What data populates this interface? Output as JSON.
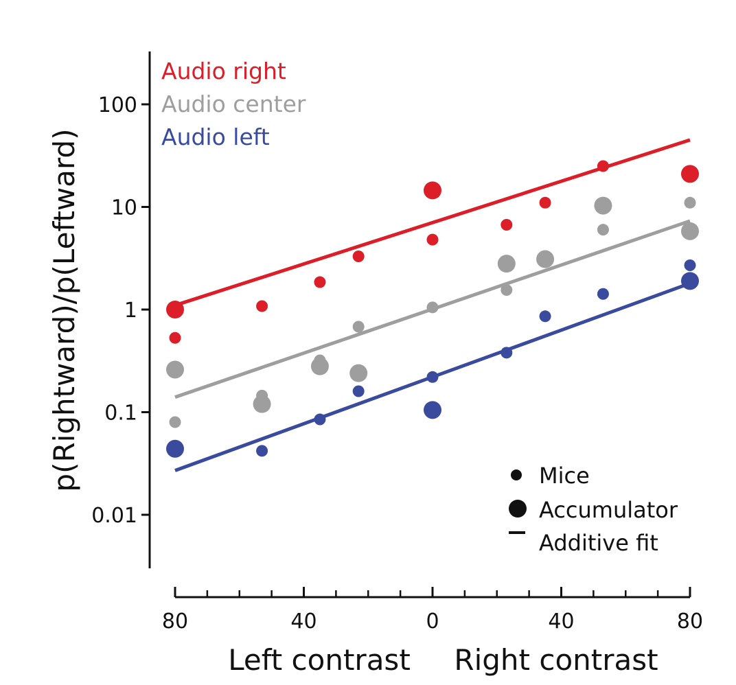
{
  "chart_data": {
    "type": "scatter",
    "ylabel": "p(Rightward)/p(Leftward)",
    "xlabel_left": "Left contrast",
    "xlabel_right": "Right contrast",
    "yscale": "log",
    "ylim": [
      0.002,
      250
    ],
    "xlim": [
      -80,
      80
    ],
    "y_ticks": [
      {
        "value": 0.01,
        "label": "0.01"
      },
      {
        "value": 0.1,
        "label": "0.1"
      },
      {
        "value": 1,
        "label": "1"
      },
      {
        "value": 10,
        "label": "10"
      },
      {
        "value": 100,
        "label": "100"
      }
    ],
    "x_ticks_major": [
      {
        "value": -80,
        "label": "80"
      },
      {
        "value": -40,
        "label": "40"
      },
      {
        "value": 0,
        "label": "0"
      },
      {
        "value": 40,
        "label": "40"
      },
      {
        "value": 80,
        "label": "80"
      }
    ],
    "x_ticks_minor": [
      -70,
      -60,
      -50,
      -30,
      -20,
      -10,
      10,
      20,
      30,
      50,
      60,
      70
    ],
    "legend_series": [
      {
        "name": "Audio right",
        "color": "#dc1e28"
      },
      {
        "name": "Audio center",
        "color": "#9e9e9e"
      },
      {
        "name": "Audio left",
        "color": "#3a4b9e"
      }
    ],
    "marker_legend": {
      "mice": "Mice",
      "accumulator": "Accumulator",
      "fit": "Additive fit"
    },
    "series": [
      {
        "name": "Audio right",
        "color": "#dc1e28",
        "fit": [
          [
            -80,
            1.1
          ],
          [
            80,
            45
          ]
        ],
        "mice": [
          [
            -80,
            0.53
          ],
          [
            -53,
            1.08
          ],
          [
            -35,
            1.85
          ],
          [
            -23,
            3.3
          ],
          [
            0,
            4.8
          ],
          [
            23,
            6.7
          ],
          [
            35,
            11
          ],
          [
            53,
            25
          ],
          [
            80,
            21
          ]
        ],
        "accumulator": [
          [
            -80,
            1.0
          ],
          [
            0,
            14.5
          ],
          [
            80,
            21
          ]
        ]
      },
      {
        "name": "Audio center",
        "color": "#9e9e9e",
        "fit": [
          [
            -80,
            0.14
          ],
          [
            80,
            7.3
          ]
        ],
        "mice": [
          [
            -80,
            0.08
          ],
          [
            -53,
            0.145
          ],
          [
            -35,
            0.32
          ],
          [
            -23,
            0.68
          ],
          [
            0,
            1.05
          ],
          [
            23,
            1.55
          ],
          [
            53,
            6.0
          ],
          [
            80,
            11
          ]
        ],
        "accumulator": [
          [
            -80,
            0.26
          ],
          [
            -53,
            0.12
          ],
          [
            -35,
            0.28
          ],
          [
            -23,
            0.24
          ],
          [
            23,
            2.8
          ],
          [
            35,
            3.1
          ],
          [
            53,
            10.3
          ],
          [
            80,
            5.8
          ]
        ]
      },
      {
        "name": "Audio left",
        "color": "#3a4b9e",
        "fit": [
          [
            -80,
            0.027
          ],
          [
            80,
            1.8
          ]
        ],
        "mice": [
          [
            -53,
            0.042
          ],
          [
            -35,
            0.085
          ],
          [
            -23,
            0.16
          ],
          [
            0,
            0.22
          ],
          [
            23,
            0.38
          ],
          [
            35,
            0.86
          ],
          [
            53,
            1.42
          ],
          [
            80,
            2.7
          ]
        ],
        "accumulator": [
          [
            -80,
            0.044
          ],
          [
            0,
            0.105
          ],
          [
            80,
            1.9
          ]
        ]
      }
    ]
  }
}
